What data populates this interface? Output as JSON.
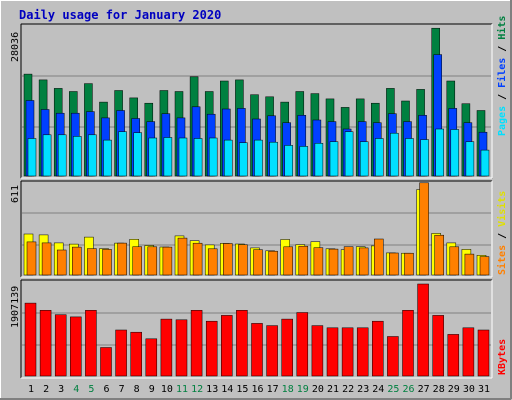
{
  "title": "Daily usage for January 2020",
  "colors": {
    "background": "#c0c0c0",
    "title": "#0000c0",
    "hits": "#008040",
    "files": "#0040ff",
    "pages": "#00e0ff",
    "visits": "#ffff00",
    "sites": "#ff8000",
    "kbytes": "#ff0000",
    "weekend_day": "#008040",
    "weekday": "#000000",
    "panel_bg": "#c0c0c0"
  },
  "chart_data": [
    {
      "type": "bar",
      "title": "Daily usage for January 2020",
      "categories": [
        "1",
        "2",
        "3",
        "4",
        "5",
        "6",
        "7",
        "8",
        "9",
        "10",
        "11",
        "12",
        "13",
        "14",
        "15",
        "16",
        "17",
        "18",
        "19",
        "20",
        "21",
        "22",
        "23",
        "24",
        "25",
        "26",
        "27",
        "28",
        "29",
        "30",
        "31"
      ],
      "weekend_days": [
        "4",
        "5",
        "11",
        "12",
        "18",
        "19",
        "25",
        "26"
      ],
      "ymax_label": "28036",
      "ylim": [
        0,
        28036
      ],
      "legend": {
        "pages": "Pages",
        "separator": " / ",
        "files": "Files",
        "hits": "Hits"
      },
      "series": [
        {
          "name": "Hits",
          "values": [
            19300,
            18200,
            16600,
            16000,
            17500,
            14000,
            16200,
            14800,
            13800,
            16200,
            16000,
            18800,
            16000,
            18000,
            18200,
            15400,
            15000,
            14000,
            16000,
            15600,
            14600,
            13000,
            14600,
            13800,
            16600,
            14200,
            16400,
            28000,
            18000,
            13700,
            12400
          ]
        },
        {
          "name": "Files",
          "values": [
            14300,
            12600,
            11900,
            11900,
            12200,
            11000,
            12400,
            10900,
            10300,
            11800,
            11000,
            13100,
            11700,
            12700,
            12800,
            10800,
            11400,
            10100,
            11500,
            10600,
            10300,
            8900,
            10300,
            10100,
            11800,
            10300,
            11500,
            23000,
            12800,
            10100,
            8300
          ]
        },
        {
          "name": "Pages",
          "values": [
            7100,
            7800,
            7800,
            7500,
            7800,
            6800,
            8400,
            8200,
            7200,
            7300,
            7200,
            7100,
            7200,
            6800,
            6300,
            6800,
            6400,
            5800,
            5600,
            6200,
            6500,
            8400,
            6500,
            7100,
            8100,
            7100,
            6900,
            8900,
            8800,
            6500,
            4900
          ]
        }
      ]
    },
    {
      "type": "bar",
      "categories": [
        "1",
        "2",
        "3",
        "4",
        "5",
        "6",
        "7",
        "8",
        "9",
        "10",
        "11",
        "12",
        "13",
        "14",
        "15",
        "16",
        "17",
        "18",
        "19",
        "20",
        "21",
        "22",
        "23",
        "24",
        "25",
        "26",
        "27",
        "28",
        "29",
        "30",
        "31"
      ],
      "ymax_label": "611",
      "ylim": [
        0,
        611
      ],
      "legend": {
        "sites": "Sites",
        "separator": " / ",
        "visits": "Visits"
      },
      "series": [
        {
          "name": "Visits",
          "values": [
            272,
            266,
            213,
            205,
            252,
            175,
            212,
            237,
            196,
            186,
            260,
            228,
            200,
            210,
            206,
            180,
            161,
            236,
            202,
            221,
            174,
            168,
            188,
            193,
            147,
            145,
            567,
            276,
            213,
            170,
            131
          ]
        },
        {
          "name": "Sites",
          "values": [
            220,
            213,
            166,
            185,
            175,
            170,
            212,
            188,
            187,
            185,
            245,
            211,
            174,
            209,
            201,
            168,
            158,
            187,
            191,
            181,
            172,
            188,
            180,
            239,
            146,
            145,
            612,
            264,
            187,
            139,
            122
          ]
        }
      ]
    },
    {
      "type": "bar",
      "categories": [
        "1",
        "2",
        "3",
        "4",
        "5",
        "6",
        "7",
        "8",
        "9",
        "10",
        "11",
        "12",
        "13",
        "14",
        "15",
        "16",
        "17",
        "18",
        "19",
        "20",
        "21",
        "22",
        "23",
        "24",
        "25",
        "26",
        "27",
        "28",
        "29",
        "30",
        "31"
      ],
      "ymax_label": "1907139",
      "ylim": [
        0,
        1907139
      ],
      "legend": {
        "kbytes": "KBytes"
      },
      "series": [
        {
          "name": "KBytes",
          "values": [
            1512000,
            1362000,
            1271000,
            1226000,
            1362000,
            590000,
            953000,
            908000,
            771000,
            1180000,
            1166000,
            1362000,
            1135000,
            1256000,
            1362000,
            1090000,
            1044000,
            1180000,
            1317000,
            1044000,
            1000000,
            1000000,
            1000000,
            1135000,
            818000,
            1362000,
            1907000,
            1256000,
            863000,
            1000000,
            953000
          ]
        }
      ]
    }
  ]
}
